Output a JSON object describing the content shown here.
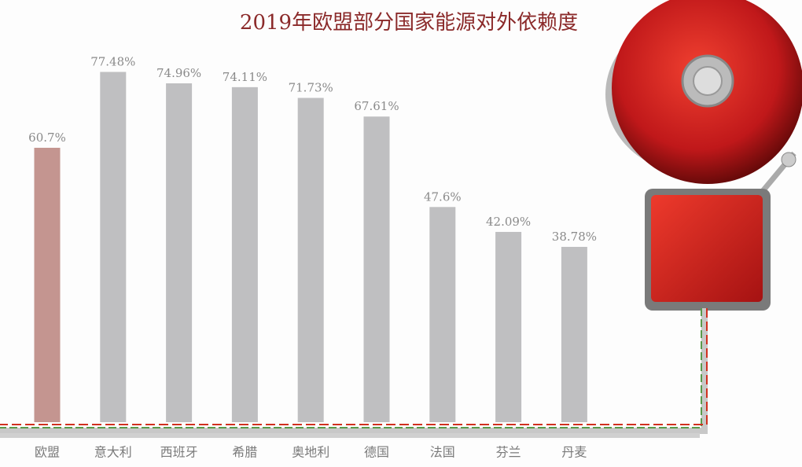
{
  "chart_data": {
    "type": "bar",
    "title": "2019年欧盟部分国家能源对外依赖度",
    "categories": [
      "欧盟",
      "意大利",
      "西班牙",
      "希腊",
      "奥地利",
      "德国",
      "法国",
      "芬兰",
      "丹麦"
    ],
    "values": [
      60.7,
      77.48,
      74.96,
      74.11,
      71.73,
      67.61,
      47.6,
      42.09,
      38.78
    ],
    "value_labels": [
      "60.7%",
      "77.48%",
      "74.96%",
      "74.11%",
      "71.73%",
      "67.61%",
      "47.6%",
      "42.09%",
      "38.78%"
    ],
    "colors": [
      "#c49590",
      "#bfbfc1",
      "#bfbfc1",
      "#bfbfc1",
      "#bfbfc1",
      "#bfbfc1",
      "#bfbfc1",
      "#bfbfc1",
      "#bfbfc1"
    ]
  }
}
